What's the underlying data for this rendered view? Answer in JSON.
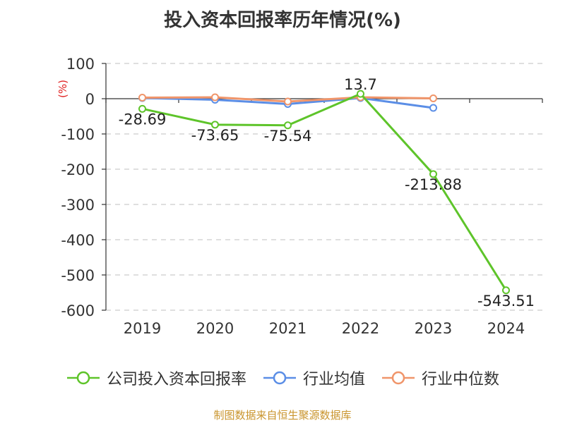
{
  "chart_data": {
    "type": "line",
    "title": "投入资本回报率历年情况(%)",
    "unit_label": "(%)",
    "categories": [
      "2019",
      "2020",
      "2021",
      "2022",
      "2023",
      "2024"
    ],
    "ylim": [
      -600,
      100
    ],
    "yticks": [
      100,
      0,
      -100,
      -200,
      -300,
      -400,
      -500,
      -600
    ],
    "grid": true,
    "legend_position": "bottom",
    "series": [
      {
        "name": "公司投入资本回报率",
        "color": "#5ec42a",
        "values": [
          -28.69,
          -73.65,
          -75.54,
          13.7,
          -213.88,
          -543.51
        ],
        "labels": [
          "-28.69",
          "-73.65",
          "-75.54",
          "13.7",
          "-213.88",
          "-543.51"
        ]
      },
      {
        "name": "行业均值",
        "color": "#5b8ee6",
        "values": [
          2,
          -3,
          -15,
          2,
          -26,
          null
        ]
      },
      {
        "name": "行业中位数",
        "color": "#f0956a",
        "values": [
          3,
          4,
          -8,
          4,
          1,
          null
        ]
      }
    ]
  },
  "source": "制图数据来自恒生聚源数据库"
}
